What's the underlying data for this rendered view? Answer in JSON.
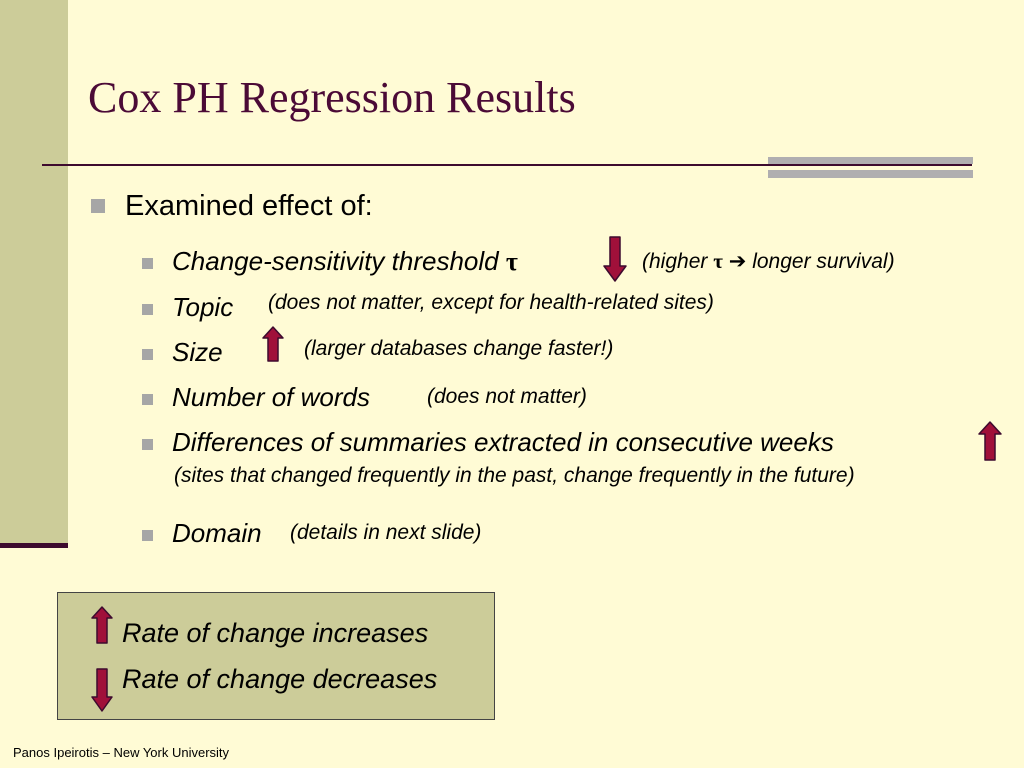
{
  "slide": {
    "title": "Cox PH Regression Results",
    "footer": "Panos Ipeirotis – New York University"
  },
  "bullets": {
    "main": "Examined effect of:",
    "items": [
      {
        "label": "Change-sensitivity threshold",
        "symbol": "τ",
        "note_prefix": "(higher",
        "note_symbol": "τ",
        "note_arrow": "➔",
        "note_suffix": "longer survival)",
        "direction": "down"
      },
      {
        "label": "Topic",
        "note": "(does not matter, except for health-related sites)"
      },
      {
        "label": "Size",
        "note": "(larger databases change faster!)",
        "direction": "up"
      },
      {
        "label": "Number of words",
        "note": "(does not matter)"
      },
      {
        "label": "Differences of summaries extracted in consecutive weeks",
        "note": "(sites that changed frequently in the past, change frequently in the future)",
        "direction": "up"
      },
      {
        "label": "Domain",
        "note": "(details in next slide)"
      }
    ]
  },
  "legend": {
    "increase": "Rate of change increases",
    "decrease": "Rate of change decreases"
  },
  "colors": {
    "background": "#fffbd5",
    "title": "#4b0a36",
    "band": "#cccc99",
    "arrow_fill": "#a0103a",
    "arrow_stroke": "#3d0a2e"
  }
}
